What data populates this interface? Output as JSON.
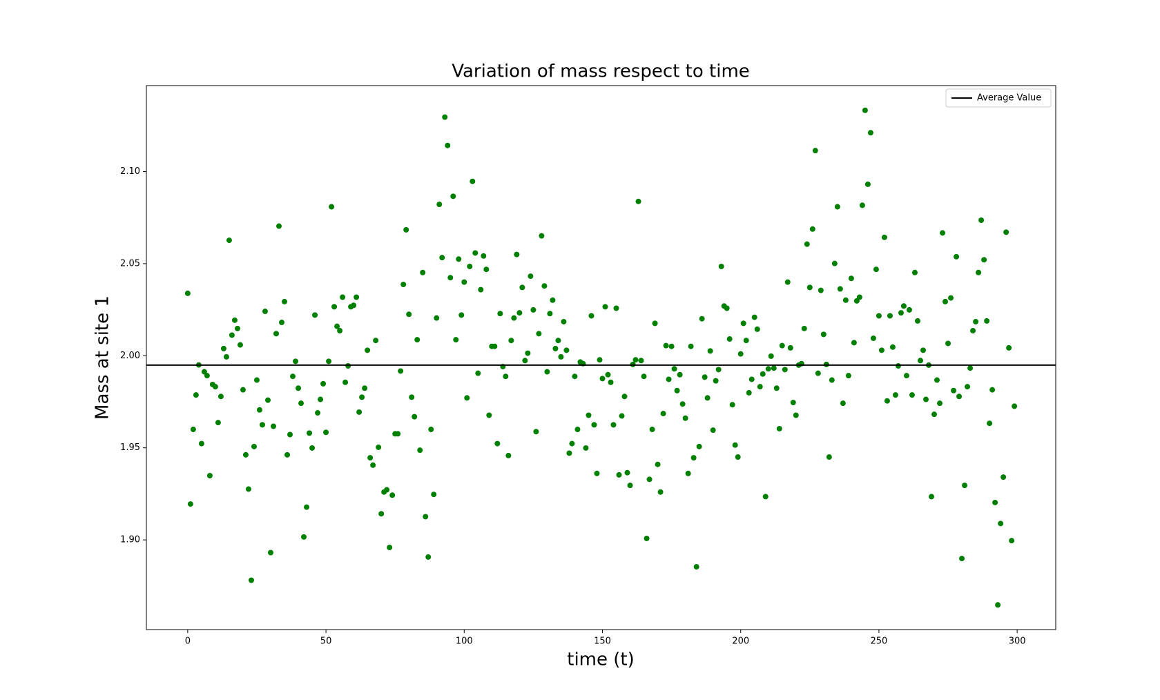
{
  "chart_data": {
    "type": "scatter",
    "title": "Variation of mass respect to time",
    "x_label": "time (t)",
    "y_label": "Mass at site 1",
    "color": "#008000",
    "x": [
      0,
      1,
      2,
      3,
      4,
      5,
      6,
      7,
      8,
      9,
      10,
      11,
      12,
      13,
      14,
      15,
      16,
      17,
      18,
      19,
      20,
      21,
      22,
      23,
      24,
      25,
      26,
      27,
      28,
      29,
      30,
      31,
      32,
      33,
      34,
      35,
      36,
      37,
      38,
      39,
      40,
      41,
      42,
      43,
      44,
      45,
      46,
      47,
      48,
      49,
      50,
      51,
      52,
      53,
      54,
      55,
      56,
      57,
      58,
      59,
      60,
      61,
      62,
      63,
      64,
      65,
      66,
      67,
      68,
      69,
      70,
      71,
      72,
      73,
      74,
      75,
      76,
      77,
      78,
      79,
      80,
      81,
      82,
      83,
      84,
      85,
      86,
      87,
      88,
      89,
      90,
      91,
      92,
      93,
      94,
      95,
      96,
      97,
      98,
      99,
      100,
      101,
      102,
      103,
      104,
      105,
      106,
      107,
      108,
      109,
      110,
      111,
      112,
      113,
      114,
      115,
      116,
      117,
      118,
      119,
      120,
      121,
      122,
      123,
      124,
      125,
      126,
      127,
      128,
      129,
      130,
      131,
      132,
      133,
      134,
      135,
      136,
      137,
      138,
      139,
      140,
      141,
      142,
      143,
      144,
      145,
      146,
      147,
      148,
      149,
      150,
      151,
      152,
      153,
      154,
      155,
      156,
      157,
      158,
      159,
      160,
      161,
      162,
      163,
      164,
      165,
      166,
      167,
      168,
      169,
      170,
      171,
      172,
      173,
      174,
      175,
      176,
      177,
      178,
      179,
      180,
      181,
      182,
      183,
      184,
      185,
      186,
      187,
      188,
      189,
      190,
      191,
      192,
      193,
      194,
      195,
      196,
      197,
      198,
      199,
      200,
      201,
      202,
      203,
      204,
      205,
      206,
      207,
      208,
      209,
      210,
      211,
      212,
      213,
      214,
      215,
      216,
      217,
      218,
      219,
      220,
      221,
      222,
      223,
      224,
      225,
      226,
      227,
      228,
      229,
      230,
      231,
      232,
      233,
      234,
      235,
      236,
      237,
      238,
      239,
      240,
      241,
      242,
      243,
      244,
      245,
      246,
      247,
      248,
      249,
      250,
      251,
      252,
      253,
      254,
      255,
      256,
      257,
      258,
      259,
      260,
      261,
      262,
      263,
      264,
      265,
      266,
      267,
      268,
      269,
      270,
      271,
      272,
      273,
      274,
      275,
      276,
      277,
      278,
      279,
      280,
      281,
      282,
      283,
      284,
      285,
      286,
      287,
      288,
      289,
      290,
      291,
      292,
      293,
      294,
      295,
      296,
      297,
      298,
      299
    ],
    "values": [
      2.0339,
      1.9195,
      1.96,
      1.9787,
      1.995,
      1.9523,
      1.9913,
      1.9892,
      1.9349,
      1.9844,
      1.9832,
      1.9637,
      1.9779,
      2.0039,
      1.9994,
      2.0627,
      2.0112,
      2.0193,
      2.0148,
      2.0059,
      1.9815,
      1.9462,
      1.9276,
      1.8781,
      1.9507,
      1.9868,
      1.9706,
      1.9625,
      2.0241,
      1.9759,
      1.8931,
      1.9617,
      2.012,
      2.0704,
      2.0181,
      2.0294,
      1.9462,
      1.9572,
      1.9888,
      1.997,
      1.9824,
      1.9742,
      1.9016,
      1.9178,
      1.958,
      1.9499,
      2.0221,
      1.969,
      1.9763,
      1.9848,
      1.9584,
      1.997,
      2.0809,
      2.0266,
      2.016,
      2.0136,
      2.0318,
      1.9856,
      1.9945,
      2.0266,
      2.0274,
      2.0318,
      1.9694,
      1.9775,
      1.9824,
      2.003,
      1.9446,
      1.9406,
      2.0083,
      1.9503,
      1.9142,
      1.926,
      1.9272,
      1.8959,
      1.9243,
      1.9576,
      1.9576,
      1.9917,
      2.0387,
      2.0684,
      2.0225,
      1.9775,
      1.9669,
      2.0087,
      1.9487,
      2.0452,
      1.9126,
      1.8907,
      1.96,
      1.9247,
      2.0205,
      2.0822,
      2.0533,
      2.1296,
      2.1142,
      2.0424,
      2.0866,
      2.0087,
      2.0525,
      2.0221,
      2.04,
      1.9771,
      2.0485,
      2.0947,
      2.0558,
      1.9905,
      2.0359,
      2.0542,
      2.0469,
      1.9677,
      2.0051,
      2.0051,
      1.9523,
      2.0229,
      1.9941,
      1.9888,
      1.9458,
      2.0083,
      2.0205,
      2.055,
      2.0233,
      2.0371,
      1.9974,
      2.0014,
      2.0432,
      2.0249,
      1.9588,
      2.012,
      2.0651,
      2.0379,
      1.9913,
      2.0229,
      2.0302,
      2.0039,
      2.0083,
      1.9994,
      2.0185,
      2.003,
      1.9471,
      1.9523,
      1.9888,
      1.96,
      1.9966,
      1.9957,
      1.9499,
      1.9677,
      2.0217,
      1.9625,
      1.9361,
      1.9978,
      1.9876,
      2.0266,
      1.9897,
      1.9856,
      1.9625,
      2.0258,
      1.9353,
      1.9673,
      1.9779,
      1.9365,
      1.9296,
      1.9953,
      1.9978,
      2.0838,
      1.9974,
      1.9888,
      1.9008,
      1.9329,
      1.96,
      2.0176,
      1.941,
      1.926,
      1.9686,
      2.0055,
      1.9872,
      2.0051,
      1.9929,
      1.9811,
      1.9897,
      1.9738,
      1.9661,
      1.9361,
      2.0051,
      1.9446,
      1.8854,
      1.9507,
      2.0201,
      1.9884,
      1.9771,
      2.0026,
      1.9596,
      1.9864,
      1.9925,
      2.0485,
      2.027,
      2.0258,
      2.0091,
      1.9734,
      1.9515,
      1.945,
      2.001,
      2.0176,
      2.0083,
      1.9799,
      1.9872,
      2.0209,
      2.0144,
      1.9832,
      1.9901,
      1.9235,
      1.9929,
      1.9998,
      1.9933,
      1.9824,
      1.9604,
      2.0055,
      1.9925,
      2.04,
      2.0043,
      1.9746,
      1.9677,
      1.9949,
      1.9957,
      2.0148,
      2.0606,
      2.0371,
      2.0688,
      2.1114,
      1.9905,
      2.0355,
      2.0116,
      1.9953,
      1.945,
      1.9868,
      2.0501,
      2.0809,
      2.0363,
      1.9742,
      2.0302,
      1.9892,
      2.042,
      2.0071,
      2.0298,
      2.0318,
      2.0817,
      2.1333,
      2.0931,
      2.1211,
      2.0095,
      2.0469,
      2.0217,
      2.003,
      2.0643,
      1.9755,
      2.0217,
      2.0047,
      1.9787,
      1.9945,
      2.0233,
      2.027,
      1.9892,
      2.0249,
      1.9787,
      2.0452,
      2.0189,
      1.9974,
      2.003,
      1.9763,
      1.9949,
      1.9235,
      1.9682,
      1.9868,
      1.9742,
      2.0667,
      2.0294,
      2.0067,
      2.0314,
      1.9811,
      2.0538,
      1.9779,
      1.8899,
      1.9296,
      1.9832,
      1.9933,
      2.0136,
      2.0185,
      2.0452,
      2.0736,
      2.0521,
      2.0189,
      1.9633,
      1.9815,
      1.9203,
      1.8647,
      1.9089,
      1.9341,
      2.0671,
      2.0043,
      1.8996,
      1.9726
    ],
    "hline": {
      "name": "Average Value",
      "value": 1.9949,
      "color": "#000000"
    },
    "legend": "upper right",
    "xlim": [
      -14.95,
      313.95
    ],
    "ylim": [
      1.8513,
      2.1467
    ],
    "xticks": [
      0,
      50,
      100,
      150,
      200,
      250,
      300
    ],
    "yticks": [
      {
        "value": 1.9,
        "label": "1.90"
      },
      {
        "value": 1.95,
        "label": "1.95"
      },
      {
        "value": 2.0,
        "label": "2.00"
      },
      {
        "value": 2.05,
        "label": "2.05"
      },
      {
        "value": 2.1,
        "label": "2.10"
      }
    ],
    "grid": false
  }
}
